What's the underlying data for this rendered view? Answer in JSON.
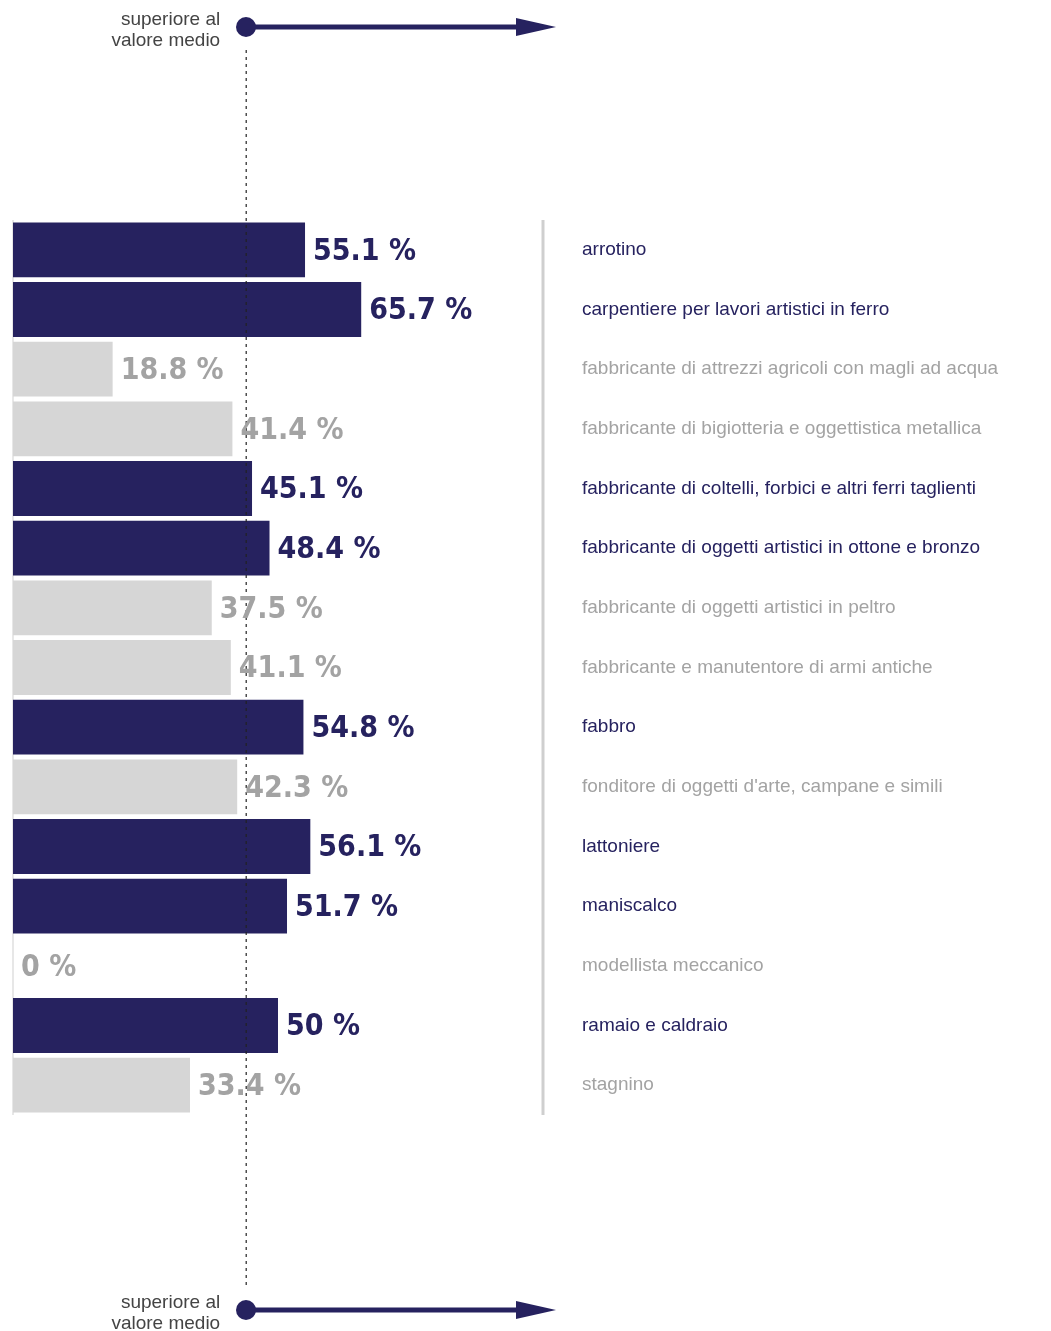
{
  "chart_data": {
    "type": "bar",
    "orientation": "horizontal",
    "categories": [
      "arrotino",
      "carpentiere per lavori artistici in ferro",
      "fabbricante di attrezzi agricoli con magli ad acqua",
      "fabbricante di bigiotteria e oggettistica metallica",
      "fabbricante di coltelli, forbici e altri ferri taglienti",
      "fabbricante di oggetti artistici in ottone e bronzo",
      "fabbricante di oggetti artistici in peltro",
      "fabbricante e manutentore di armi antiche",
      "fabbro",
      "fonditore di oggetti d'arte, campane e simili",
      "lattoniere",
      "maniscalco",
      "modellista meccanico",
      "ramaio e caldraio",
      "stagnino"
    ],
    "values": [
      55.1,
      65.7,
      18.8,
      41.4,
      45.1,
      48.4,
      37.5,
      41.1,
      54.8,
      42.3,
      56.1,
      51.7,
      0,
      50,
      33.4
    ],
    "colors": [
      "#26225f",
      "#26225f",
      "#d6d6d6",
      "#d6d6d6",
      "#26225f",
      "#26225f",
      "#d6d6d6",
      "#d6d6d6",
      "#26225f",
      "#d6d6d6",
      "#26225f",
      "#26225f",
      "#d6d6d6",
      "#26225f",
      "#d6d6d6"
    ],
    "value_labels": [
      "55.1 %",
      "65.7 %",
      "18.8 %",
      "41.4 %",
      "45.1 %",
      "48.4 %",
      "37.5 %",
      "41.1 %",
      "54.8 %",
      "42.3 %",
      "56.1 %",
      "51.7 %",
      "0 %",
      "50 %",
      "33.4 %"
    ],
    "xlim": [
      0,
      100
    ],
    "ref_lines": [
      {
        "axis": "x",
        "value": 44,
        "color": "#222222",
        "line_style": "dotted"
      }
    ],
    "annotations": [
      "superiore al\nvalore medio",
      "superiore al\nvalore medio"
    ],
    "legend": false,
    "grid": false
  }
}
